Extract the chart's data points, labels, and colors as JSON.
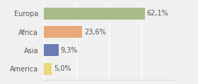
{
  "categories": [
    "Europa",
    "Africa",
    "Asia",
    "America"
  ],
  "values": [
    62.1,
    23.6,
    9.3,
    5.0
  ],
  "labels": [
    "62,1%",
    "23,6%",
    "9,3%",
    "5,0%"
  ],
  "bar_colors": [
    "#a8bc8a",
    "#e8a97a",
    "#6b7cb5",
    "#e8d87a"
  ],
  "background_color": "#f0f0f0",
  "xlim": [
    0,
    80
  ],
  "bar_height": 0.65,
  "label_fontsize": 7.0,
  "tick_fontsize": 7.0
}
